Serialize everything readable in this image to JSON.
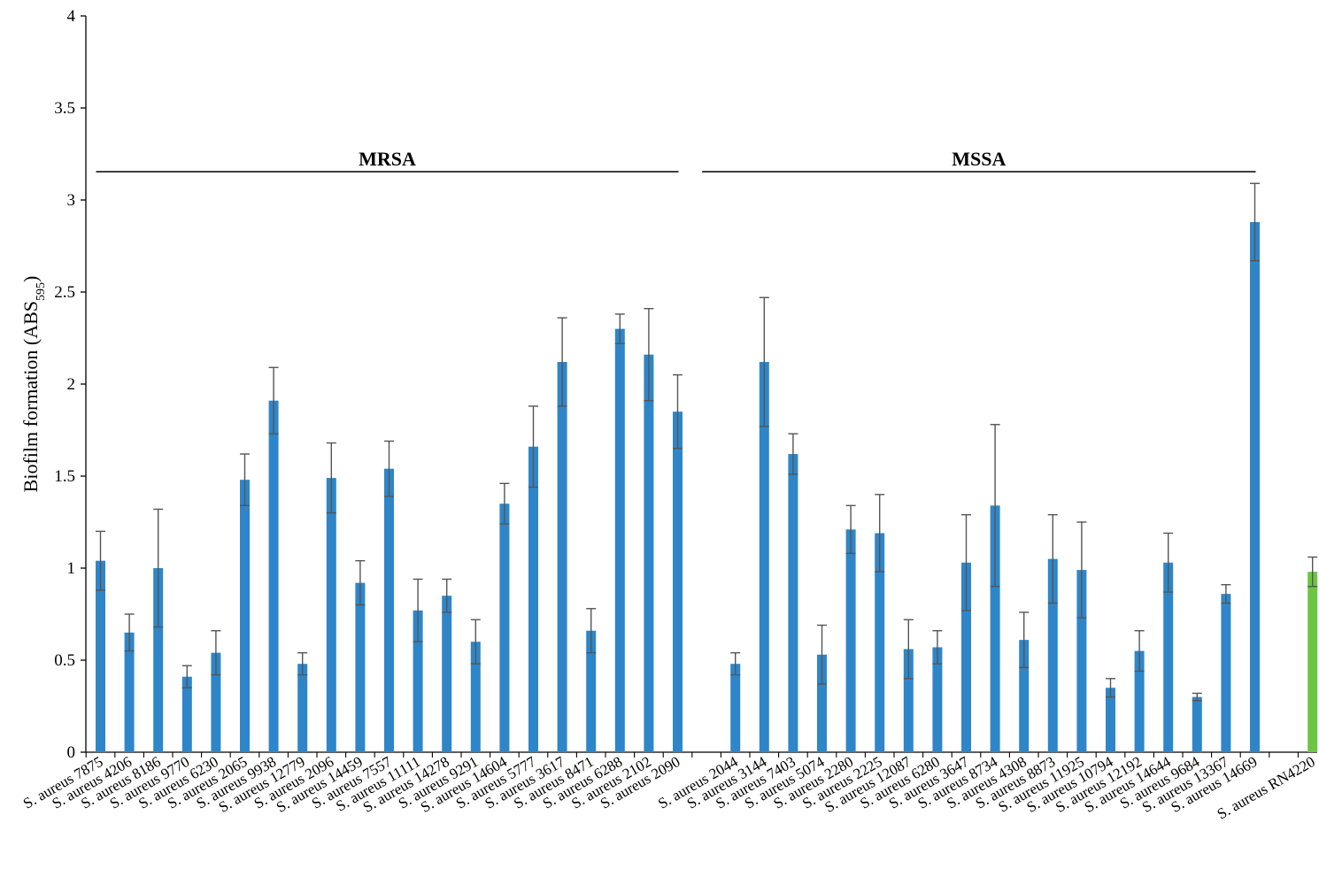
{
  "chart_data": {
    "type": "bar",
    "ylabel": "Biofilm formation (ABS",
    "ylabel_sub": "595",
    "ylabel_close": ")",
    "ylim": [
      0,
      4
    ],
    "yticks": [
      0,
      0.5,
      1,
      1.5,
      2,
      2.5,
      3,
      3.5,
      4
    ],
    "ytick_labels": [
      "0",
      "0.5",
      "1",
      "1.5",
      "2",
      "2.5",
      "3",
      "3.5",
      "4"
    ],
    "grid": false,
    "groups": [
      {
        "label": "MRSA",
        "start": 0,
        "end": 20
      },
      {
        "label": "MSSA",
        "start": 21,
        "end": 40
      }
    ],
    "colors": {
      "default": "#2E86C9",
      "control": "#6CC644",
      "error": "#555555"
    },
    "categories": [
      "S. aureus 7875",
      "S. aureus 4206",
      "S. aureus 8186",
      "S. aureus 9770",
      "S. aureus 6230",
      "S. aureus 2065",
      "S. aureus 9938",
      "S. aureus 12779",
      "S. aureus 2096",
      "S. aureus 14459",
      "S. aureus 7557",
      "S. aureus 11111",
      "S. aureus 14278",
      "S. aureus 9291",
      "S. aureus 14604",
      "S. aureus 5777",
      "S. aureus 3617",
      "S. aureus 8471",
      "S. aureus 6288",
      "S. aureus 2102",
      "S. aureus 2090",
      "",
      "S. aureus 2044",
      "S. aureus 3144",
      "S. aureus 7403",
      "S. aureus 5074",
      "S. aureus 2280",
      "S. aureus 2225",
      "S. aureus 12087",
      "S. aureus 6280",
      "S. aureus 3647",
      "S. aureus 8734",
      "S. aureus 4308",
      "S. aureus 8873",
      "S. aureus 11925",
      "S. aureus 10794",
      "S. aureus 12192",
      "S. aureus 14644",
      "S. aureus 9684",
      "S. aureus 13367",
      "S. aureus 14669",
      "",
      "S. aureus RN4220"
    ],
    "values": [
      1.04,
      0.65,
      1.0,
      0.41,
      0.54,
      1.48,
      1.91,
      0.48,
      1.49,
      0.92,
      1.54,
      0.77,
      0.85,
      0.6,
      1.35,
      1.66,
      2.12,
      0.66,
      2.3,
      2.16,
      1.85,
      null,
      0.48,
      2.12,
      1.62,
      0.53,
      1.21,
      1.19,
      0.56,
      0.57,
      1.03,
      1.34,
      0.61,
      1.05,
      0.99,
      0.35,
      0.55,
      1.03,
      0.3,
      0.86,
      2.88,
      null,
      0.98
    ],
    "errors": [
      0.16,
      0.1,
      0.32,
      0.06,
      0.12,
      0.14,
      0.18,
      0.06,
      0.19,
      0.12,
      0.15,
      0.17,
      0.09,
      0.12,
      0.11,
      0.22,
      0.24,
      0.12,
      0.08,
      0.25,
      0.2,
      null,
      0.06,
      0.35,
      0.11,
      0.16,
      0.13,
      0.21,
      0.16,
      0.09,
      0.26,
      0.44,
      0.15,
      0.24,
      0.26,
      0.05,
      0.11,
      0.16,
      0.02,
      0.05,
      0.21,
      null,
      0.08
    ],
    "control_index": 42
  }
}
